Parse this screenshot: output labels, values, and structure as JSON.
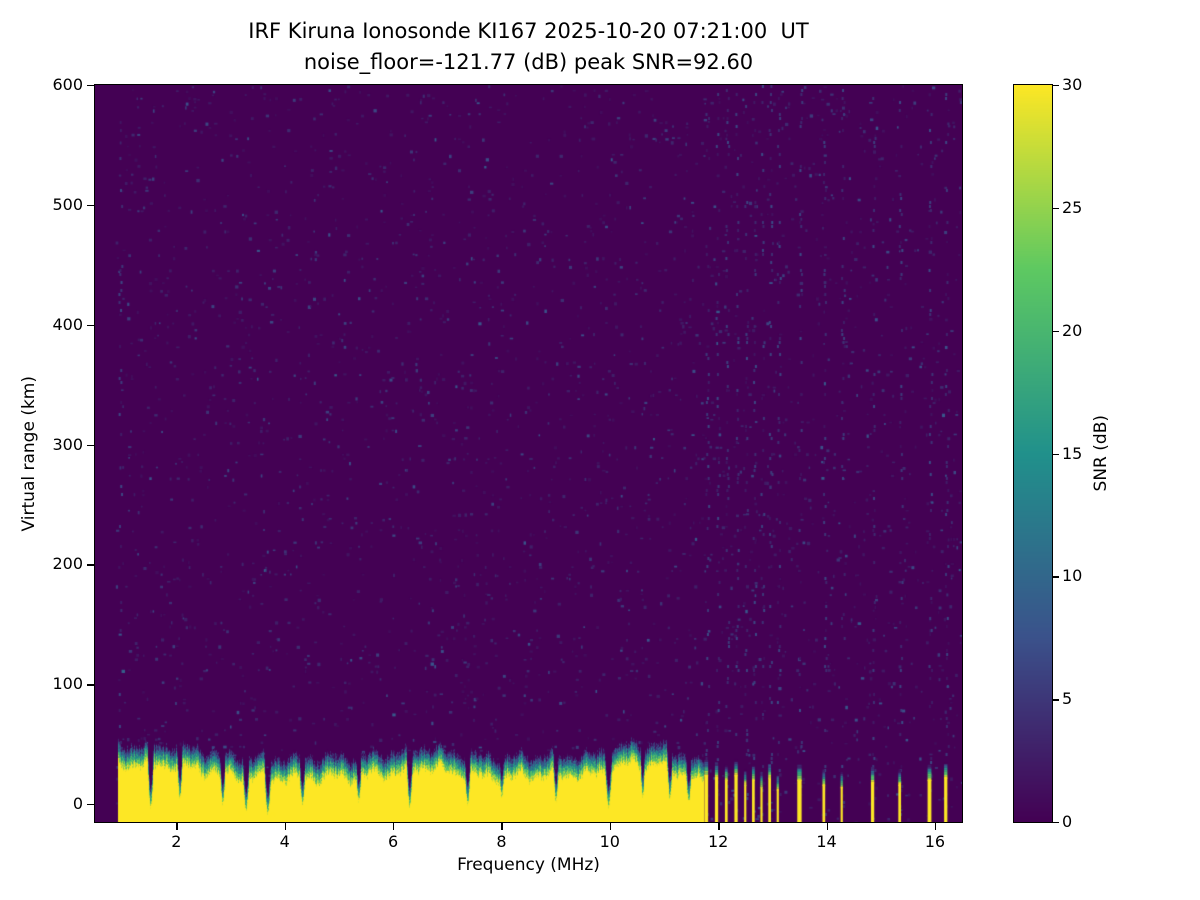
{
  "figure": {
    "background": "#ffffff"
  },
  "chart_data": {
    "type": "heatmap",
    "title": "IRF Kiruna Ionosonde KI167 2025-10-20 07:21:00  UT",
    "subtitle": "noise_floor=-121.77 (dB) peak SNR=92.60",
    "xlabel": "Frequency (MHz)",
    "ylabel": "Virtual range (km)",
    "xlim": [
      0.5,
      16.5
    ],
    "ylim": [
      -15,
      600
    ],
    "xticks": [
      2,
      4,
      6,
      8,
      10,
      12,
      14,
      16
    ],
    "yticks": [
      0,
      100,
      200,
      300,
      400,
      500,
      600
    ],
    "grid": false,
    "legend_position": "none",
    "colorbar": {
      "label": "SNR (dB)",
      "range": [
        0,
        30
      ],
      "ticks": [
        0,
        5,
        10,
        15,
        20,
        25,
        30
      ],
      "colormap": "viridis",
      "colors": [
        "#440154",
        "#3b528b",
        "#21918c",
        "#5ec962",
        "#fde725"
      ]
    },
    "features": {
      "background_snr_db": 0,
      "noise_speckle": {
        "density": 0.055,
        "snr_max_db": 8
      },
      "ground_echo_band": {
        "freq_start_mhz": 0.92,
        "freq_end_mhz": 11.72,
        "snr_db": 30,
        "top_km_profile": [
          [
            0.92,
            40
          ],
          [
            1.3,
            42
          ],
          [
            2.2,
            40
          ],
          [
            3.0,
            32
          ],
          [
            4.0,
            30
          ],
          [
            5.0,
            31
          ],
          [
            6.0,
            34
          ],
          [
            6.6,
            40
          ],
          [
            7.2,
            34
          ],
          [
            8.0,
            31
          ],
          [
            9.0,
            33
          ],
          [
            9.6,
            32
          ],
          [
            10.3,
            42
          ],
          [
            10.9,
            41
          ],
          [
            11.4,
            33
          ],
          [
            11.72,
            26
          ]
        ]
      },
      "band_notches": [
        [
          1.52,
          5,
          0.06
        ],
        [
          2.06,
          12,
          0.05
        ],
        [
          2.85,
          8,
          0.05
        ],
        [
          3.28,
          2,
          0.06
        ],
        [
          3.68,
          0,
          0.06
        ],
        [
          4.32,
          8,
          0.05
        ],
        [
          5.36,
          10,
          0.05
        ],
        [
          6.3,
          6,
          0.06
        ],
        [
          7.37,
          8,
          0.05
        ],
        [
          8.0,
          14,
          0.04
        ],
        [
          9.0,
          10,
          0.05
        ],
        [
          9.97,
          6,
          0.06
        ],
        [
          10.6,
          14,
          0.04
        ],
        [
          11.1,
          12,
          0.05
        ],
        [
          11.45,
          10,
          0.05
        ]
      ],
      "isolated_stripes": [
        [
          11.78,
          0.07,
          30
        ],
        [
          11.97,
          0.06,
          28
        ],
        [
          12.15,
          0.05,
          26
        ],
        [
          12.33,
          0.06,
          30
        ],
        [
          12.5,
          0.04,
          22
        ],
        [
          12.65,
          0.05,
          26
        ],
        [
          12.8,
          0.04,
          20
        ],
        [
          12.95,
          0.05,
          28
        ],
        [
          13.1,
          0.04,
          18
        ],
        [
          13.5,
          0.08,
          26
        ],
        [
          13.95,
          0.05,
          22
        ],
        [
          14.28,
          0.04,
          20
        ],
        [
          14.85,
          0.06,
          24
        ],
        [
          15.35,
          0.05,
          22
        ],
        [
          15.9,
          0.07,
          26
        ],
        [
          16.2,
          0.06,
          28
        ]
      ],
      "rfi_columns_mhz": [
        0.95,
        11.78,
        11.97,
        12.15,
        12.33,
        12.5,
        12.65,
        12.8,
        12.95,
        13.1,
        13.5,
        13.95,
        14.28,
        14.85,
        15.35,
        15.9,
        16.2
      ],
      "below_band_marks": [
        [
          3.2,
          -7
        ],
        [
          3.78,
          -9
        ]
      ]
    }
  }
}
